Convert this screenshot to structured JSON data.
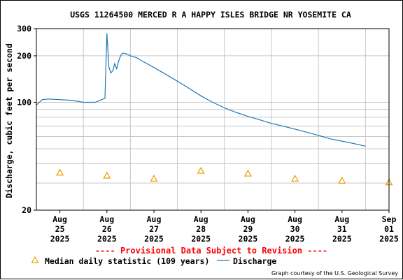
{
  "chart_data": {
    "type": "line",
    "title": "USGS 11264500 MERCED R A HAPPY ISLES BRIDGE NR YOSEMITE CA",
    "ylabel": "Discharge, cubic feet per second",
    "yscale": "log",
    "ylim": [
      20,
      300
    ],
    "xlim": [
      "2025-08-25T00:00",
      "2025-09-01T12:00"
    ],
    "yticks": [
      {
        "value": 20,
        "label": "20"
      },
      {
        "value": 100,
        "label": "100"
      },
      {
        "value": 200,
        "label": "200"
      },
      {
        "value": 300,
        "label": "300"
      }
    ],
    "xticks": [
      {
        "date": "2025-08-25T12:00",
        "month": "Aug",
        "day": "25",
        "year": "2025"
      },
      {
        "date": "2025-08-26T12:00",
        "month": "Aug",
        "day": "26",
        "year": "2025"
      },
      {
        "date": "2025-08-27T12:00",
        "month": "Aug",
        "day": "27",
        "year": "2025"
      },
      {
        "date": "2025-08-28T12:00",
        "month": "Aug",
        "day": "28",
        "year": "2025"
      },
      {
        "date": "2025-08-29T12:00",
        "month": "Aug",
        "day": "29",
        "year": "2025"
      },
      {
        "date": "2025-08-30T12:00",
        "month": "Aug",
        "day": "30",
        "year": "2025"
      },
      {
        "date": "2025-08-31T12:00",
        "month": "Aug",
        "day": "31",
        "year": "2025"
      },
      {
        "date": "2025-09-01T12:00",
        "month": "Sep",
        "day": "01",
        "year": "2025"
      }
    ],
    "grid": true,
    "series": [
      {
        "name": "Discharge",
        "color": "#1f77b4",
        "x": [
          "2025-08-25T00:00",
          "2025-08-25T03:00",
          "2025-08-25T06:00",
          "2025-08-25T12:00",
          "2025-08-25T18:00",
          "2025-08-26T00:00",
          "2025-08-26T06:00",
          "2025-08-26T10:00",
          "2025-08-26T11:00",
          "2025-08-26T12:00",
          "2025-08-26T13:00",
          "2025-08-26T14:00",
          "2025-08-26T15:00",
          "2025-08-26T16:00",
          "2025-08-26T17:00",
          "2025-08-26T18:00",
          "2025-08-26T19:00",
          "2025-08-26T20:00",
          "2025-08-26T22:00",
          "2025-08-27T00:00",
          "2025-08-27T03:00",
          "2025-08-27T06:00",
          "2025-08-27T12:00",
          "2025-08-27T18:00",
          "2025-08-28T00:00",
          "2025-08-28T06:00",
          "2025-08-28T12:00",
          "2025-08-28T18:00",
          "2025-08-29T00:00",
          "2025-08-29T06:00",
          "2025-08-29T12:00",
          "2025-08-29T18:00",
          "2025-08-30T00:00",
          "2025-08-30T06:00",
          "2025-08-30T12:00",
          "2025-08-30T18:00",
          "2025-08-31T00:00",
          "2025-08-31T06:00",
          "2025-08-31T12:00",
          "2025-08-31T18:00",
          "2025-09-01T00:00"
        ],
        "y": [
          96,
          104,
          105,
          104,
          103,
          100,
          100,
          105,
          106,
          280,
          170,
          155,
          160,
          178,
          165,
          185,
          200,
          208,
          206,
          200,
          195,
          185,
          168,
          152,
          137,
          123,
          110,
          100,
          92,
          86,
          81,
          77,
          73,
          70,
          67,
          64,
          61,
          58,
          56,
          54,
          52
        ]
      },
      {
        "name": "Median daily statistic (109 years)",
        "color": "#e8a000",
        "marker": "triangle",
        "x": [
          "2025-08-25T12:00",
          "2025-08-26T12:00",
          "2025-08-27T12:00",
          "2025-08-28T12:00",
          "2025-08-29T12:00",
          "2025-08-30T12:00",
          "2025-08-31T12:00",
          "2025-09-01T12:00"
        ],
        "y": [
          35,
          33.5,
          32,
          36,
          34.5,
          32,
          31,
          30.3
        ]
      }
    ]
  },
  "notice": "---- Provisional Data Subject to Revision ----",
  "notice_color": "#ff0000",
  "legend": {
    "median_label": "Median daily statistic (109 years)",
    "discharge_label": "Discharge"
  },
  "credit": "Graph courtesy of the U.S. Geological Survey"
}
